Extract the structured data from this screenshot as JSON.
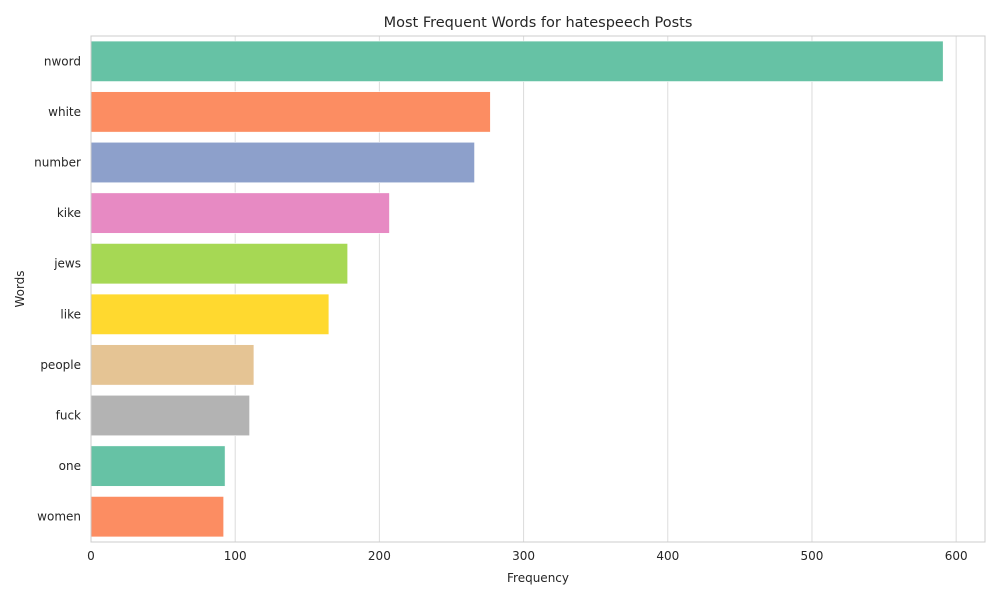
{
  "chart_data": {
    "type": "bar",
    "orientation": "horizontal",
    "title": "Most Frequent Words for hatespeech Posts",
    "xlabel": "Frequency",
    "ylabel": "Words",
    "categories": [
      "nword",
      "white",
      "number",
      "kike",
      "jews",
      "like",
      "people",
      "fuck",
      "one",
      "women"
    ],
    "values": [
      591,
      277,
      266,
      207,
      178,
      165,
      113,
      110,
      93,
      92
    ],
    "xlim": [
      0,
      620
    ],
    "xticks": [
      0,
      100,
      200,
      300,
      400,
      500,
      600
    ],
    "grid": true,
    "colors": [
      "#66c2a5",
      "#fc8d62",
      "#8da0cb",
      "#e78ac3",
      "#a6d854",
      "#ffd92f",
      "#e5c494",
      "#b3b3b3",
      "#66c2a5",
      "#fc8d62"
    ]
  }
}
